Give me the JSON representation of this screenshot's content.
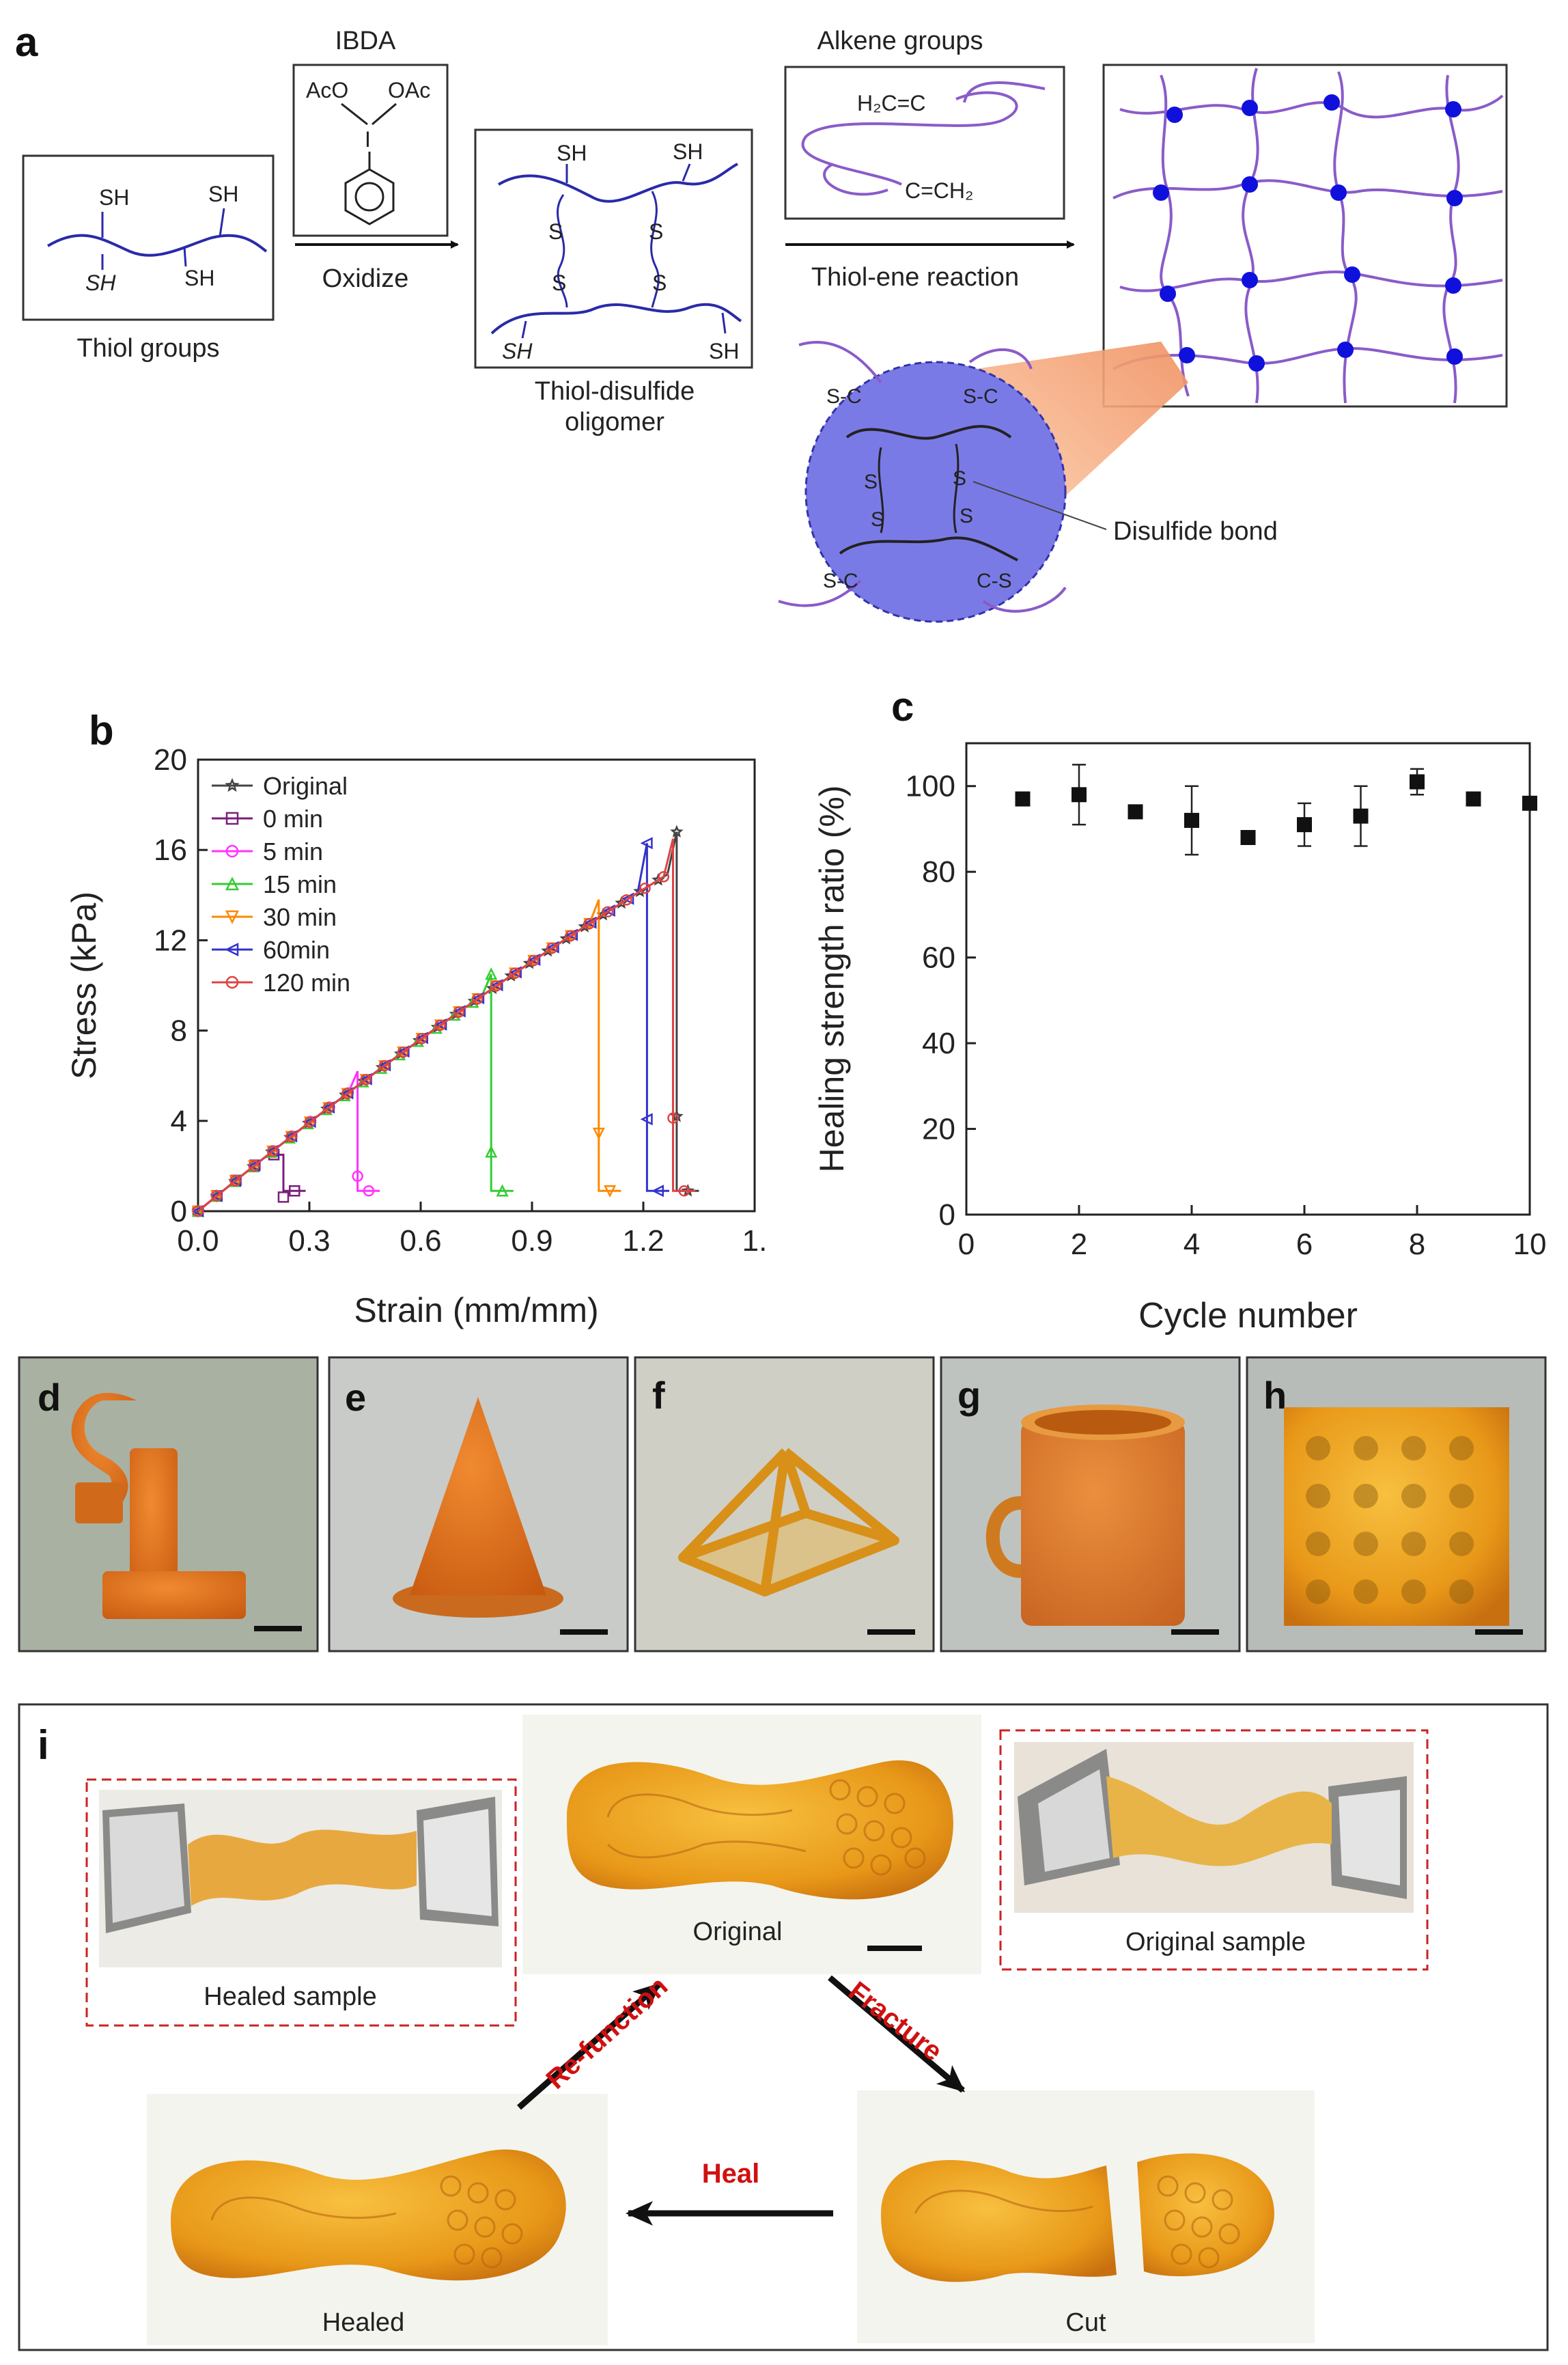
{
  "panel_labels": {
    "a": "a",
    "b": "b",
    "c": "c",
    "d": "d",
    "e": "e",
    "f": "f",
    "g": "g",
    "h": "h",
    "i": "i"
  },
  "panel_a": {
    "thiol_groups_label": "Thiol groups",
    "sh_labels": [
      "SH",
      "SH",
      "SH",
      "SH"
    ],
    "ibda_title": "IBDA",
    "aco": "AcO",
    "oac": "OAc",
    "iodine": "I",
    "oxidize_label": "Oxidize",
    "oligomer_sh": [
      "SH",
      "SH",
      "SH",
      "SH"
    ],
    "oligomer_s": [
      "S",
      "S",
      "S",
      "S"
    ],
    "oligomer_label_1": "Thiol-disulfide",
    "oligomer_label_2": "oligomer",
    "alkene_title": "Alkene groups",
    "alkene_top": "H₂C=C",
    "alkene_bottom": "C=CH₂",
    "thiol_ene_label": "Thiol-ene reaction",
    "zoom_sc": [
      "S-C",
      "S-C",
      "S-C",
      "C-S"
    ],
    "zoom_s": [
      "S",
      "S",
      "S",
      "S"
    ],
    "disulfide_label": "Disulfide bond"
  },
  "chart_data": [
    {
      "type": "line",
      "title": "",
      "xlabel": "Strain (mm/mm)",
      "ylabel": "Stress (kPa)",
      "xlim": [
        0,
        1.5
      ],
      "ylim": [
        0,
        20
      ],
      "xticks": [
        "0.0",
        "0.3",
        "0.6",
        "0.9",
        "1.2",
        "1."
      ],
      "yticks": [
        "0",
        "4",
        "8",
        "12",
        "16",
        "20"
      ],
      "legend_position": "top-left",
      "series": [
        {
          "name": "Original",
          "color": "#444444",
          "marker": "star",
          "break_strain": 1.29,
          "peak_stress": 16.8
        },
        {
          "name": "0 min",
          "color": "#7a1f7a",
          "marker": "square",
          "break_strain": 0.23,
          "peak_stress": 2.5
        },
        {
          "name": "5 min",
          "color": "#ff33ff",
          "marker": "circle",
          "break_strain": 0.43,
          "peak_stress": 6.2
        },
        {
          "name": "15 min",
          "color": "#33cc33",
          "marker": "triangle-up",
          "break_strain": 0.79,
          "peak_stress": 10.5
        },
        {
          "name": "30 min",
          "color": "#ff8800",
          "marker": "triangle-down",
          "break_strain": 1.08,
          "peak_stress": 13.8
        },
        {
          "name": "60min",
          "color": "#3333cc",
          "marker": "triangle-left",
          "break_strain": 1.21,
          "peak_stress": 16.3
        },
        {
          "name": "120 min",
          "color": "#dd4444",
          "marker": "circle",
          "break_strain": 1.28,
          "peak_stress": 16.5
        }
      ]
    },
    {
      "type": "scatter",
      "title": "",
      "xlabel": "Cycle number",
      "ylabel": "Healing strength ratio (%)",
      "xlim": [
        0,
        10
      ],
      "ylim": [
        0,
        110
      ],
      "xticks": [
        "0",
        "2",
        "4",
        "6",
        "8",
        "10"
      ],
      "yticks": [
        "0",
        "20",
        "40",
        "60",
        "80",
        "100"
      ],
      "x": [
        1,
        2,
        3,
        4,
        5,
        6,
        7,
        8,
        9,
        10
      ],
      "values": [
        97,
        98,
        94,
        92,
        88,
        91,
        93,
        101,
        97,
        96
      ],
      "errors": [
        0,
        7,
        0,
        8,
        1,
        5,
        7,
        3,
        0,
        0
      ]
    }
  ],
  "panel_i": {
    "original": "Original",
    "original_sample": "Original sample",
    "healed_sample": "Healed sample",
    "healed": "Healed",
    "cut": "Cut",
    "fracture": "Fracture",
    "heal": "Heal",
    "refunction": "Re-function"
  },
  "colors": {
    "accent_red": "#d01010",
    "purple_chain": "#8a5bc9",
    "blue_chain": "#2a2aaa",
    "node_blue": "#1010dd",
    "amber": "#e8a020"
  }
}
